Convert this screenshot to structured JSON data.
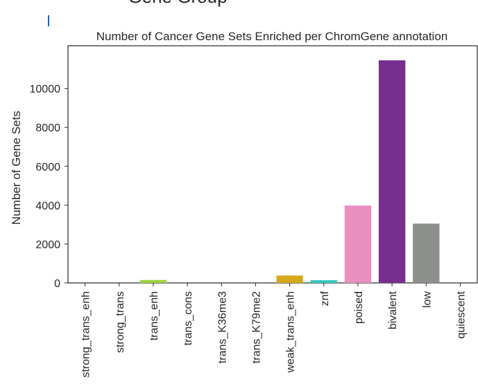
{
  "page": {
    "suptitle": "Gene Group"
  },
  "chart_data": {
    "type": "bar",
    "title": "Number of Cancer Gene Sets Enriched per ChromGene annotation",
    "xlabel": "",
    "ylabel": "Number of Gene Sets",
    "categories": [
      "strong_trans_enh",
      "strong_trans",
      "trans_enh",
      "trans_cons",
      "trans_K36me3",
      "trans_K79me2",
      "weak_trans_enh",
      "znf",
      "poised",
      "bivalent",
      "low",
      "quiescent"
    ],
    "values": [
      0,
      0,
      150,
      0,
      0,
      0,
      380,
      140,
      3980,
      11450,
      3050,
      0
    ],
    "colors": [
      "#5a7ac4",
      "#4ca54c",
      "#9fd33f",
      "#8a8a5a",
      "#7a6a4a",
      "#9a8a3a",
      "#d6a91f",
      "#36c5c0",
      "#ea8fc2",
      "#772e8f",
      "#8d8f8a",
      "#dcdcdc"
    ],
    "ylim": [
      0,
      12200
    ],
    "yticks": [
      0,
      2000,
      4000,
      6000,
      8000,
      10000
    ],
    "ytick_labels": [
      "0",
      "2000",
      "4000",
      "6000",
      "8000",
      "10000"
    ],
    "grid": false,
    "legend": "none"
  }
}
